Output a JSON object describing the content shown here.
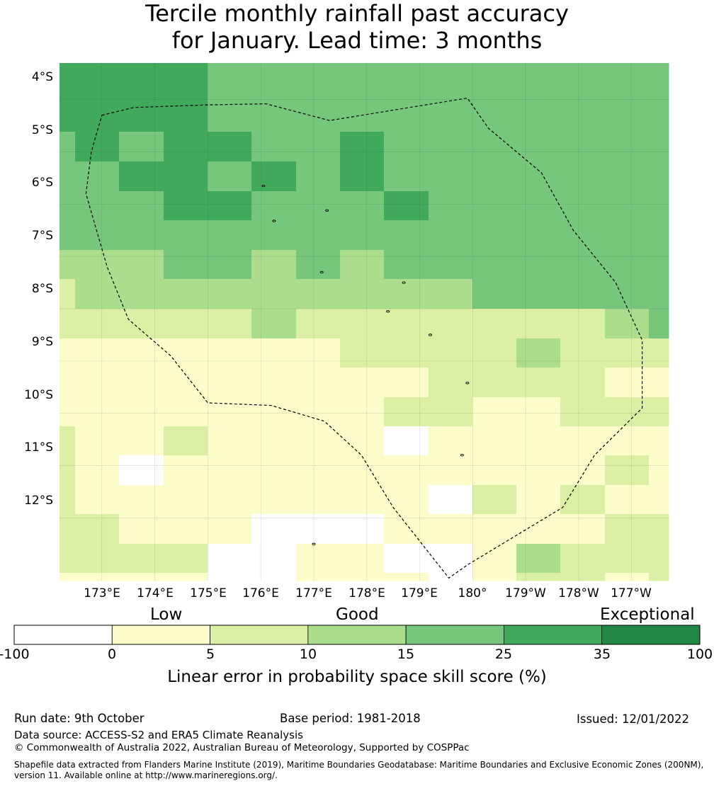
{
  "title": {
    "line1": "Tercile monthly rainfall past accuracy",
    "line2": "for January. Lead time: 3 months"
  },
  "colors": {
    "lt0": "#ffffff",
    "c0_5": "#fdfdcb",
    "c5_10": "#dbf0a4",
    "c10_15": "#acdd8c",
    "c15_25": "#76c67c",
    "c25_35": "#40a95b",
    "c35_100": "#238845"
  },
  "map": {
    "lon_range": [
      172.2,
      183.7
    ],
    "lat_range": [
      -13.2,
      -3.3
    ],
    "lat_labels": [
      "4°S",
      "5°S",
      "6°S",
      "7°S",
      "8°S",
      "9°S",
      "10°S",
      "11°S",
      "12°S"
    ],
    "lat_values": [
      -4,
      -5,
      -6,
      -7,
      -8,
      -9,
      -10,
      -11,
      -12
    ],
    "lon_labels": [
      "173°E",
      "174°E",
      "175°E",
      "176°E",
      "177°E",
      "178°E",
      "179°E",
      "180°",
      "179°W",
      "178°W",
      "177°W"
    ],
    "lon_values": [
      173,
      174,
      175,
      176,
      177,
      178,
      179,
      180,
      181,
      182,
      183
    ],
    "boundary_lonlat": [
      [
        173.0,
        -4.3
      ],
      [
        173.6,
        -4.15
      ],
      [
        175.0,
        -4.1
      ],
      [
        176.1,
        -4.08
      ],
      [
        177.3,
        -4.4
      ],
      [
        179.9,
        -3.97
      ],
      [
        180.3,
        -4.55
      ],
      [
        181.3,
        -5.4
      ],
      [
        181.9,
        -6.5
      ],
      [
        182.7,
        -7.5
      ],
      [
        183.2,
        -8.6
      ],
      [
        183.2,
        -9.9
      ],
      [
        182.3,
        -10.8
      ],
      [
        181.7,
        -11.8
      ],
      [
        179.9,
        -12.9
      ],
      [
        179.55,
        -13.15
      ],
      [
        178.5,
        -11.8
      ],
      [
        177.9,
        -10.8
      ],
      [
        177.2,
        -10.15
      ],
      [
        176.2,
        -9.85
      ],
      [
        175.0,
        -9.8
      ],
      [
        174.3,
        -8.9
      ],
      [
        173.5,
        -8.2
      ],
      [
        173.1,
        -7.2
      ],
      [
        172.9,
        -6.5
      ],
      [
        172.7,
        -5.8
      ],
      [
        172.8,
        -5.0
      ],
      [
        173.0,
        -4.3
      ]
    ],
    "islands_lonlat": [
      [
        176.05,
        -5.65
      ],
      [
        177.25,
        -6.12
      ],
      [
        176.25,
        -6.32
      ],
      [
        177.15,
        -7.3
      ],
      [
        178.7,
        -7.5
      ],
      [
        178.4,
        -8.05
      ],
      [
        179.2,
        -8.5
      ],
      [
        179.9,
        -9.42
      ],
      [
        179.8,
        -10.8
      ],
      [
        177.0,
        -12.5
      ]
    ]
  },
  "colorbar": {
    "category_labels": [
      "Low",
      "Good",
      "Exceptional"
    ],
    "tick_labels": [
      "-100",
      "0",
      "5",
      "10",
      "15",
      "25",
      "35",
      "100"
    ],
    "title": "Linear error in probability space skill score (%)"
  },
  "footer": {
    "run_date": "Run date: 9th October",
    "base_period": "Base period: 1981-2018",
    "issued": "Issued: 12/01/2022",
    "data_source": "Data source: ACCESS-S2 and ERA5 Climate Reanalysis",
    "copyright": "© Commonwealth of Australia 2022, Australian Bureau of Meteorology, Supported by COSPPac",
    "shapefile_line1": "Shapefile data extracted from Flanders Marine Institute (2019), Maritime Boundaries Geodatabase: Maritime Boundaries and Exclusive Economic Zones (200NM),",
    "shapefile_line2": "version 11. Available online at http://www.marineregions.org/."
  }
}
